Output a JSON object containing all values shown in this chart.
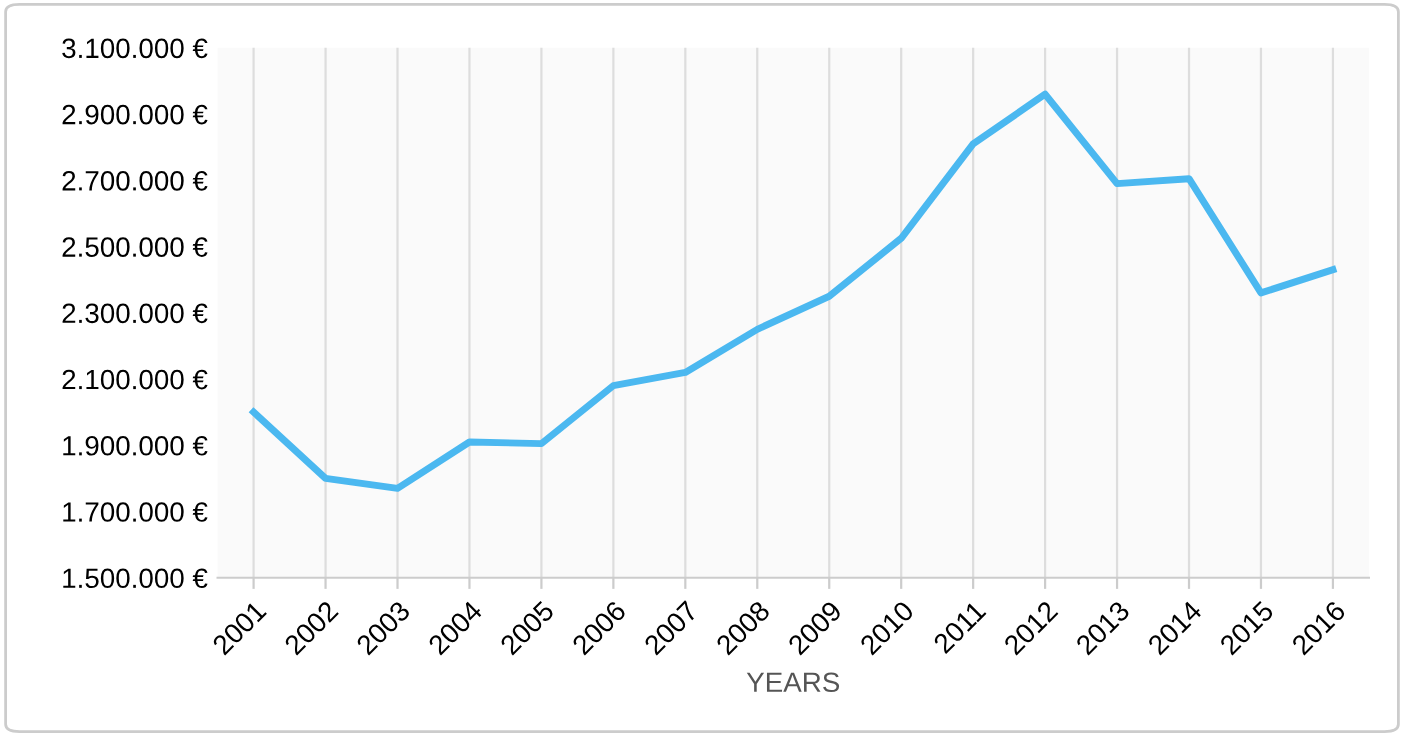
{
  "chart_data": {
    "type": "line",
    "xlabel": "YEARS",
    "categories": [
      "2001",
      "2002",
      "2003",
      "2004",
      "2005",
      "2006",
      "2007",
      "2008",
      "2009",
      "2010",
      "2011",
      "2012",
      "2013",
      "2014",
      "2015",
      "2016"
    ],
    "series": [
      {
        "color": "#4bb8f0",
        "values": [
          2000000,
          1800000,
          1770000,
          1910000,
          1905000,
          2080000,
          2120000,
          2250000,
          2350000,
          2525000,
          2810000,
          2960000,
          2690000,
          2705000,
          2360000,
          2430000
        ]
      }
    ],
    "ylim": [
      1500000,
      3100000
    ],
    "yticks": [
      {
        "value": 1500000,
        "label": "1.500.000 €"
      },
      {
        "value": 1700000,
        "label": "1.700.000 €"
      },
      {
        "value": 1900000,
        "label": "1.900.000 €"
      },
      {
        "value": 2100000,
        "label": "2.100.000 €"
      },
      {
        "value": 2300000,
        "label": "2.300.000 €"
      },
      {
        "value": 2500000,
        "label": "2.500.000 €"
      },
      {
        "value": 2700000,
        "label": "2.700.000 €"
      },
      {
        "value": 2900000,
        "label": "2.900.000 €"
      },
      {
        "value": 3100000,
        "label": "3.100.000 €"
      }
    ],
    "grid": "x",
    "marker": "none",
    "line_style": "solid",
    "legend": false
  }
}
